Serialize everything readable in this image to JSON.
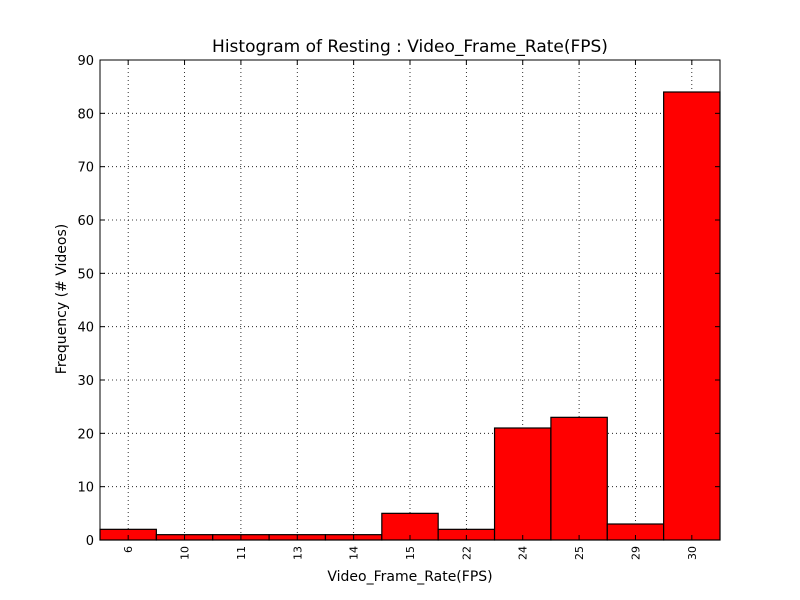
{
  "chart_data": {
    "type": "bar",
    "title": "Histogram of Resting : Video_Frame_Rate(FPS)",
    "xlabel": "Video_Frame_Rate(FPS)",
    "ylabel": "Frequency (# Videos)",
    "categories": [
      "6",
      "10",
      "11",
      "13",
      "14",
      "15",
      "22",
      "24",
      "25",
      "29",
      "30"
    ],
    "values": [
      2,
      1,
      1,
      1,
      1,
      5,
      2,
      21,
      23,
      3,
      84
    ],
    "ylim": [
      0,
      90
    ],
    "yticks": [
      "0",
      "10",
      "20",
      "30",
      "40",
      "50",
      "60",
      "70",
      "80",
      "90"
    ],
    "grid": true,
    "bar_color": "#ff0000",
    "edge_color": "#000000"
  }
}
